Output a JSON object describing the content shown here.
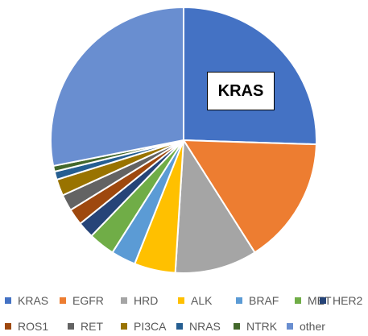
{
  "chart_data": {
    "type": "pie",
    "categories": [
      "KRAS",
      "EGFR",
      "HRD",
      "ALK",
      "BRAF",
      "MET",
      "HER2",
      "ROS1",
      "RET",
      "PI3CA",
      "NRAS",
      "NTRK",
      "other"
    ],
    "values": [
      25.5,
      15.5,
      10,
      5,
      3,
      3.2,
      2,
      2,
      2,
      2,
      1,
      0.7,
      28.1
    ],
    "colors": [
      "#4472C4",
      "#ED7D31",
      "#A5A5A5",
      "#FFC000",
      "#5B9BD5",
      "#70AD47",
      "#264478",
      "#9E480E",
      "#636363",
      "#997300",
      "#255E91",
      "#43682B",
      "#698ED0"
    ],
    "slice_label": "KRAS",
    "legend_position": "bottom",
    "title": ""
  }
}
